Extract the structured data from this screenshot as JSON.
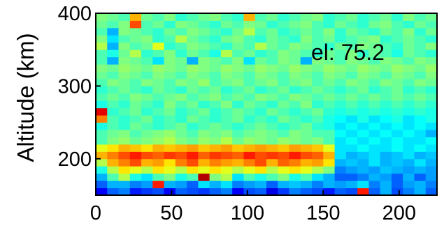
{
  "chart_data": {
    "type": "heatmap",
    "title": "",
    "xlabel": "",
    "ylabel": "Altitude (km)",
    "annotation": "el: 75.2",
    "xlim": [
      0,
      225
    ],
    "ylim": [
      150,
      400
    ],
    "x_ticks": [
      0,
      50,
      100,
      150,
      200
    ],
    "y_ticks": [
      200,
      300,
      400
    ],
    "colormap": "jet",
    "value_range": [
      0,
      1
    ],
    "cell_width_x": 7.5,
    "cell_height_y": 10,
    "x_start": 0,
    "y_start": 150,
    "values": [
      [
        0.12,
        0.22,
        0.25,
        0.15,
        0.18,
        0.2,
        0.12,
        0.22,
        0.2,
        0.18,
        0.22,
        0.25,
        0.12,
        0.2,
        0.22,
        0.1,
        0.18,
        0.25,
        0.22,
        0.2,
        0.15,
        0.22,
        0.2,
        0.85,
        0.22,
        0.3,
        0.2,
        0.25,
        0.3,
        0.22
      ],
      [
        0.22,
        0.3,
        0.3,
        0.25,
        0.28,
        0.85,
        0.3,
        0.28,
        0.22,
        0.35,
        0.3,
        0.35,
        0.25,
        0.28,
        0.3,
        0.22,
        0.3,
        0.32,
        0.3,
        0.25,
        0.3,
        0.28,
        0.3,
        0.35,
        0.25,
        0.3,
        0.22,
        0.28,
        0.3,
        0.25
      ],
      [
        0.3,
        0.45,
        0.55,
        0.4,
        0.35,
        0.45,
        0.5,
        0.4,
        0.45,
        0.95,
        0.5,
        0.55,
        0.35,
        0.45,
        0.4,
        0.45,
        0.5,
        0.4,
        0.45,
        0.35,
        0.3,
        0.22,
        0.22,
        0.25,
        0.3,
        0.28,
        0.22,
        0.3,
        0.22,
        0.28
      ],
      [
        0.4,
        0.55,
        0.65,
        0.6,
        0.55,
        0.65,
        0.6,
        0.55,
        0.65,
        0.6,
        0.65,
        0.6,
        0.55,
        0.6,
        0.65,
        0.55,
        0.6,
        0.65,
        0.6,
        0.55,
        0.5,
        0.25,
        0.28,
        0.3,
        0.28,
        0.32,
        0.3,
        0.28,
        0.3,
        0.28
      ],
      [
        0.55,
        0.7,
        0.75,
        0.8,
        0.7,
        0.72,
        0.65,
        0.75,
        0.8,
        0.7,
        0.75,
        0.72,
        0.7,
        0.75,
        0.8,
        0.7,
        0.78,
        0.75,
        0.7,
        0.72,
        0.65,
        0.3,
        0.32,
        0.3,
        0.35,
        0.3,
        0.32,
        0.3,
        0.35,
        0.3
      ],
      [
        0.7,
        0.75,
        0.8,
        0.85,
        0.8,
        0.78,
        0.82,
        0.8,
        0.85,
        0.78,
        0.82,
        0.8,
        0.78,
        0.85,
        0.8,
        0.82,
        0.8,
        0.85,
        0.8,
        0.78,
        0.7,
        0.35,
        0.3,
        0.32,
        0.35,
        0.3,
        0.32,
        0.35,
        0.3,
        0.32
      ],
      [
        0.6,
        0.65,
        0.7,
        0.68,
        0.65,
        0.7,
        0.68,
        0.7,
        0.72,
        0.68,
        0.7,
        0.72,
        0.68,
        0.7,
        0.72,
        0.7,
        0.68,
        0.72,
        0.7,
        0.68,
        0.6,
        0.35,
        0.35,
        0.38,
        0.35,
        0.35,
        0.38,
        0.35,
        0.38,
        0.35
      ],
      [
        0.45,
        0.5,
        0.52,
        0.48,
        0.5,
        0.52,
        0.55,
        0.5,
        0.48,
        0.52,
        0.5,
        0.55,
        0.48,
        0.52,
        0.5,
        0.48,
        0.52,
        0.5,
        0.48,
        0.5,
        0.45,
        0.35,
        0.38,
        0.35,
        0.38,
        0.35,
        0.38,
        0.35,
        0.35,
        0.38
      ],
      [
        0.45,
        0.48,
        0.5,
        0.45,
        0.48,
        0.5,
        0.52,
        0.48,
        0.45,
        0.5,
        0.48,
        0.5,
        0.45,
        0.48,
        0.5,
        0.48,
        0.45,
        0.5,
        0.48,
        0.45,
        0.45,
        0.38,
        0.35,
        0.38,
        0.35,
        0.38,
        0.35,
        0.38,
        0.35,
        0.3
      ],
      [
        0.4,
        0.45,
        0.42,
        0.48,
        0.45,
        0.42,
        0.45,
        0.48,
        0.42,
        0.45,
        0.48,
        0.45,
        0.42,
        0.45,
        0.48,
        0.45,
        0.42,
        0.45,
        0.48,
        0.42,
        0.4,
        0.35,
        0.38,
        0.35,
        0.38,
        0.35,
        0.38,
        0.35,
        0.38,
        0.35
      ],
      [
        0.75,
        0.45,
        0.42,
        0.45,
        0.48,
        0.42,
        0.45,
        0.42,
        0.48,
        0.45,
        0.42,
        0.45,
        0.48,
        0.42,
        0.45,
        0.42,
        0.48,
        0.45,
        0.42,
        0.45,
        0.4,
        0.38,
        0.35,
        0.4,
        0.35,
        0.38,
        0.4,
        0.35,
        0.38,
        0.4
      ],
      [
        0.9,
        0.42,
        0.45,
        0.48,
        0.42,
        0.45,
        0.48,
        0.42,
        0.45,
        0.48,
        0.42,
        0.45,
        0.48,
        0.45,
        0.42,
        0.48,
        0.45,
        0.42,
        0.45,
        0.48,
        0.42,
        0.4,
        0.42,
        0.4,
        0.42,
        0.4,
        0.42,
        0.4,
        0.42,
        0.4
      ],
      [
        0.4,
        0.45,
        0.42,
        0.48,
        0.45,
        0.42,
        0.5,
        0.45,
        0.48,
        0.42,
        0.45,
        0.5,
        0.42,
        0.48,
        0.45,
        0.42,
        0.48,
        0.45,
        0.5,
        0.42,
        0.45,
        0.42,
        0.45,
        0.42,
        0.45,
        0.42,
        0.45,
        0.42,
        0.45,
        0.42
      ],
      [
        0.45,
        0.48,
        0.45,
        0.5,
        0.48,
        0.45,
        0.48,
        0.5,
        0.45,
        0.48,
        0.5,
        0.45,
        0.48,
        0.45,
        0.5,
        0.48,
        0.45,
        0.5,
        0.48,
        0.45,
        0.48,
        0.45,
        0.48,
        0.45,
        0.48,
        0.45,
        0.48,
        0.45,
        0.48,
        0.45
      ],
      [
        0.42,
        0.45,
        0.48,
        0.45,
        0.42,
        0.48,
        0.45,
        0.42,
        0.48,
        0.45,
        0.48,
        0.42,
        0.45,
        0.48,
        0.42,
        0.45,
        0.48,
        0.42,
        0.45,
        0.48,
        0.45,
        0.42,
        0.45,
        0.48,
        0.42,
        0.45,
        0.48,
        0.42,
        0.45,
        0.42
      ],
      [
        0.45,
        0.5,
        0.48,
        0.45,
        0.5,
        0.48,
        0.45,
        0.5,
        0.48,
        0.52,
        0.45,
        0.48,
        0.5,
        0.45,
        0.48,
        0.5,
        0.45,
        0.48,
        0.5,
        0.45,
        0.48,
        0.45,
        0.5,
        0.48,
        0.45,
        0.5,
        0.48,
        0.45,
        0.5,
        0.48
      ],
      [
        0.48,
        0.45,
        0.5,
        0.48,
        0.45,
        0.5,
        0.48,
        0.45,
        0.5,
        0.48,
        0.45,
        0.5,
        0.48,
        0.45,
        0.5,
        0.48,
        0.45,
        0.5,
        0.48,
        0.45,
        0.5,
        0.48,
        0.45,
        0.5,
        0.48,
        0.45,
        0.5,
        0.48,
        0.45,
        0.5
      ],
      [
        0.5,
        0.48,
        0.52,
        0.5,
        0.48,
        0.52,
        0.5,
        0.48,
        0.52,
        0.5,
        0.48,
        0.52,
        0.5,
        0.48,
        0.52,
        0.5,
        0.48,
        0.52,
        0.5,
        0.48,
        0.52,
        0.5,
        0.48,
        0.52,
        0.5,
        0.48,
        0.52,
        0.5,
        0.48,
        0.52
      ],
      [
        0.45,
        0.3,
        0.5,
        0.48,
        0.45,
        0.35,
        0.5,
        0.48,
        0.3,
        0.5,
        0.48,
        0.45,
        0.5,
        0.35,
        0.48,
        0.45,
        0.5,
        0.48,
        0.3,
        0.5,
        0.48,
        0.45,
        0.5,
        0.48,
        0.45,
        0.5,
        0.48,
        0.45,
        0.5,
        0.48
      ],
      [
        0.45,
        0.4,
        0.48,
        0.55,
        0.42,
        0.45,
        0.5,
        0.42,
        0.48,
        0.45,
        0.4,
        0.55,
        0.45,
        0.48,
        0.42,
        0.45,
        0.5,
        0.48,
        0.45,
        0.42,
        0.48,
        0.45,
        0.5,
        0.42,
        0.48,
        0.45,
        0.4,
        0.48,
        0.45,
        0.42
      ],
      [
        0.55,
        0.3,
        0.5,
        0.45,
        0.48,
        0.6,
        0.42,
        0.45,
        0.5,
        0.48,
        0.45,
        0.42,
        0.48,
        0.45,
        0.55,
        0.48,
        0.45,
        0.5,
        0.48,
        0.45,
        0.42,
        0.48,
        0.45,
        0.5,
        0.48,
        0.45,
        0.42,
        0.48,
        0.45,
        0.5
      ],
      [
        0.5,
        0.35,
        0.45,
        0.48,
        0.5,
        0.42,
        0.45,
        0.55,
        0.48,
        0.45,
        0.42,
        0.48,
        0.5,
        0.45,
        0.42,
        0.48,
        0.45,
        0.42,
        0.5,
        0.45,
        0.48,
        0.42,
        0.45,
        0.48,
        0.5,
        0.42,
        0.45,
        0.48,
        0.45,
        0.42
      ],
      [
        0.45,
        0.3,
        0.5,
        0.48,
        0.45,
        0.42,
        0.48,
        0.45,
        0.5,
        0.48,
        0.45,
        0.42,
        0.48,
        0.55,
        0.45,
        0.48,
        0.42,
        0.45,
        0.48,
        0.45,
        0.5,
        0.42,
        0.48,
        0.45,
        0.42,
        0.48,
        0.45,
        0.5,
        0.42,
        0.48
      ],
      [
        0.48,
        0.45,
        0.5,
        0.8,
        0.45,
        0.48,
        0.42,
        0.5,
        0.48,
        0.45,
        0.42,
        0.48,
        0.45,
        0.5,
        0.48,
        0.42,
        0.45,
        0.48,
        0.5,
        0.45,
        0.42,
        0.48,
        0.45,
        0.42,
        0.48,
        0.5,
        0.45,
        0.42,
        0.48,
        0.45
      ],
      [
        0.5,
        0.48,
        0.45,
        0.7,
        0.48,
        0.45,
        0.5,
        0.42,
        0.45,
        0.48,
        0.5,
        0.45,
        0.42,
        0.7,
        0.45,
        0.48,
        0.42,
        0.45,
        0.48,
        0.5,
        0.42,
        0.45,
        0.48,
        0.42,
        0.45,
        0.48,
        0.42,
        0.5,
        0.45,
        0.48
      ]
    ]
  }
}
